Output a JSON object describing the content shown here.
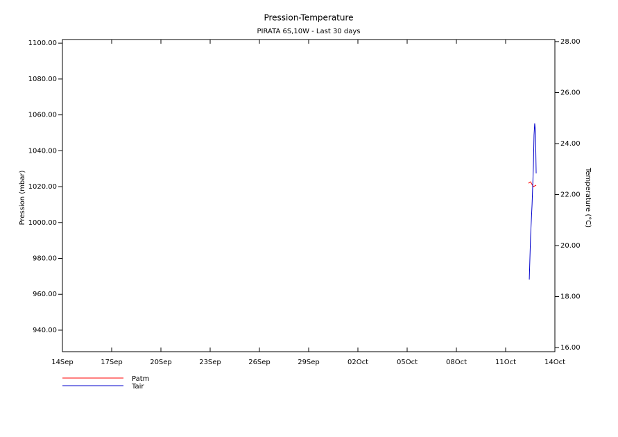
{
  "chart_data": {
    "type": "line",
    "title": "Pression-Temperature",
    "subtitle": "PIRATA 6S,10W - Last 30 days",
    "y_label": "Pression (mbar)",
    "y2_label": "Temperature (°C)",
    "xlim": [
      0,
      30
    ],
    "xticks": [
      {
        "value": 0,
        "label": "14Sep"
      },
      {
        "value": 3,
        "label": "17Sep"
      },
      {
        "value": 6,
        "label": "20Sep"
      },
      {
        "value": 9,
        "label": "23Sep"
      },
      {
        "value": 12,
        "label": "26Sep"
      },
      {
        "value": 15,
        "label": "29Sep"
      },
      {
        "value": 18,
        "label": "02Oct"
      },
      {
        "value": 21,
        "label": "05Oct"
      },
      {
        "value": 24,
        "label": "08Oct"
      },
      {
        "value": 27,
        "label": "11Oct"
      },
      {
        "value": 30,
        "label": "14Oct"
      }
    ],
    "ylim": [
      928,
      1102
    ],
    "yticks": [
      {
        "value": 940,
        "label": "940.00"
      },
      {
        "value": 960,
        "label": "960.00"
      },
      {
        "value": 980,
        "label": "980.00"
      },
      {
        "value": 1000,
        "label": "1000.00"
      },
      {
        "value": 1020,
        "label": "1020.00"
      },
      {
        "value": 1040,
        "label": "1040.00"
      },
      {
        "value": 1060,
        "label": "1060.00"
      },
      {
        "value": 1080,
        "label": "1080.00"
      },
      {
        "value": 1100,
        "label": "1100.00"
      }
    ],
    "y2lim": [
      15.84,
      28.08
    ],
    "y2ticks": [
      {
        "value": 16,
        "label": "16.00"
      },
      {
        "value": 18,
        "label": "18.00"
      },
      {
        "value": 20,
        "label": "20.00"
      },
      {
        "value": 22,
        "label": "22.00"
      },
      {
        "value": 24,
        "label": "24.00"
      },
      {
        "value": 26,
        "label": "26.00"
      },
      {
        "value": 28,
        "label": "28.00"
      }
    ],
    "series": [
      {
        "name": "Patm",
        "color": "#ff0000",
        "x": [
          28.39,
          28.52,
          28.61,
          28.69,
          28.77,
          28.86
        ],
        "values": [
          1021.9,
          1022.7,
          1021.2,
          1020.0,
          1020.4,
          1020.8
        ]
      },
      {
        "name": "Tair",
        "color": "#0000cc",
        "axis": "y2",
        "x": [
          28.44,
          28.52,
          28.61,
          28.69,
          28.73,
          28.77,
          28.82,
          28.84,
          28.86
        ],
        "values": [
          18.67,
          20.38,
          21.61,
          23.1,
          24.33,
          24.79,
          24.46,
          23.65,
          22.83
        ]
      }
    ]
  }
}
